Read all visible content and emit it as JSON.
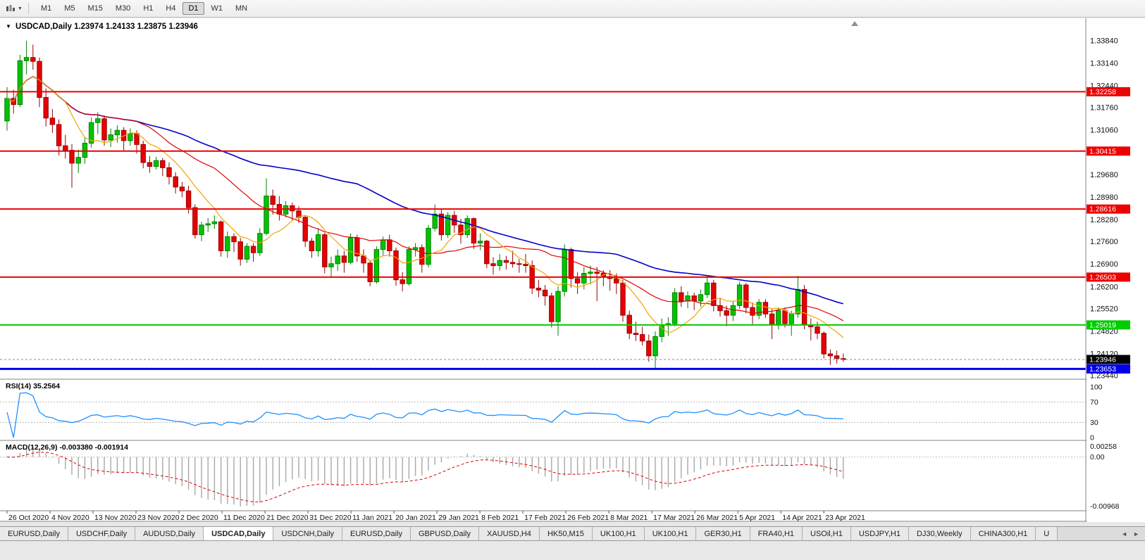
{
  "toolbar": {
    "timeframes": [
      "M1",
      "M5",
      "M15",
      "M30",
      "H1",
      "H4",
      "D1",
      "W1",
      "MN"
    ],
    "active": "D1"
  },
  "icons": {
    "dropdown_caret": "▼",
    "title_caret": "▼",
    "tab_scroll_left": "◄",
    "tab_scroll_right": "►",
    "chart_shift_marker": "▲"
  },
  "chart": {
    "symbol_title": "USDCAD,Daily",
    "ohlc_text": "1.23974 1.24133 1.23875 1.23946",
    "current_price": "1.23946",
    "colors": {
      "bull_fill": "#00C400",
      "bull_stroke": "#008000",
      "bear_fill": "#E80000",
      "bear_stroke": "#990000",
      "ma_fast": "#F0A500",
      "ma_mid": "#E00000",
      "ma_slow": "#0000C8",
      "rsi_line": "#1E90FF",
      "macd_hist": "#A8A8A8",
      "macd_signal": "#E00000",
      "axis_text": "#111111",
      "panel_border": "#808080",
      "current_price_bg": "#000000"
    },
    "h_lines": [
      {
        "price": 1.32258,
        "label": "1.32258",
        "color": "#EE0000",
        "width": 2
      },
      {
        "price": 1.30415,
        "label": "1.30415",
        "color": "#EE0000",
        "width": 2
      },
      {
        "price": 1.28616,
        "label": "1.28616",
        "color": "#EE0000",
        "width": 2
      },
      {
        "price": 1.26503,
        "label": "1.26503",
        "color": "#EE0000",
        "width": 2
      },
      {
        "price": 1.25019,
        "label": "1.25019",
        "color": "#00CC00",
        "width": 2
      },
      {
        "price": 1.23653,
        "label": "1.23653",
        "color": "#0000EE",
        "width": 3
      }
    ],
    "price_axis_ticks": [
      "1.33840",
      "1.33140",
      "1.32440",
      "1.31760",
      "1.31060",
      "1.29680",
      "1.28980",
      "1.28280",
      "1.27600",
      "1.26900",
      "1.26200",
      "1.25520",
      "1.24820",
      "1.24120",
      "1.23440"
    ],
    "moving_averages": [
      {
        "period": 55,
        "color_key": "ma_slow"
      },
      {
        "period": 21,
        "color_key": "ma_mid"
      },
      {
        "period": 8,
        "color_key": "ma_fast"
      }
    ]
  },
  "rsi_panel": {
    "label": "RSI(14) 35.2564",
    "period": 14,
    "value": "35.2564",
    "levels": [
      70,
      30
    ],
    "axis_labels": [
      "100",
      "70",
      "30",
      "0"
    ]
  },
  "macd_panel": {
    "label": "MACD(12,26,9) -0.003380 -0.001914",
    "fast": 12,
    "slow": 26,
    "signal": 9,
    "values": [
      "-0.003380",
      "-0.001914"
    ],
    "axis_labels": [
      "0.00258",
      "0.00",
      "-0.00968"
    ]
  },
  "tab_bar": {
    "tabs": [
      "EURUSD,Daily",
      "USDCHF,Daily",
      "AUDUSD,Daily",
      "USDCAD,Daily",
      "USDCNH,Daily",
      "EURUSD,Daily",
      "GBPUSD,Daily",
      "XAUUSD,H4",
      "HK50,M15",
      "UK100,H1",
      "UK100,H1",
      "GER30,H1",
      "FRA40,H1",
      "USOil,H1",
      "USDJPY,H1",
      "DJ30,Weekly",
      "CHINA300,H1",
      "U"
    ],
    "active_index": 3
  },
  "chart_data": {
    "type": "candlestick",
    "title": "USDCAD,Daily",
    "symbol": "USDCAD",
    "timeframe": "Daily",
    "last_ohlc": {
      "open": 1.23974,
      "high": 1.24133,
      "low": 1.23875,
      "close": 1.23946
    },
    "ylim": [
      1.234,
      1.3445
    ],
    "x_labels": [
      "26 Oct 2020",
      "4 Nov 2020",
      "13 Nov 2020",
      "23 Nov 2020",
      "2 Dec 2020",
      "11 Dec 2020",
      "21 Dec 2020",
      "31 Dec 2020",
      "11 Jan 2021",
      "20 Jan 2021",
      "29 Jan 2021",
      "8 Feb 2021",
      "17 Feb 2021",
      "26 Feb 2021",
      "8 Mar 2021",
      "17 Mar 2021",
      "26 Mar 2021",
      "5 Apr 2021",
      "14 Apr 2021",
      "23 Apr 2021"
    ],
    "ohlc": [
      [
        1.3135,
        1.324,
        1.3105,
        1.3205
      ],
      [
        1.3205,
        1.3232,
        1.3158,
        1.3186
      ],
      [
        1.3186,
        1.334,
        1.3178,
        1.3322
      ],
      [
        1.3322,
        1.3384,
        1.328,
        1.3332
      ],
      [
        1.3332,
        1.3372,
        1.3294,
        1.332
      ],
      [
        1.332,
        1.3332,
        1.3178,
        1.3208
      ],
      [
        1.3208,
        1.3236,
        1.3118,
        1.3144
      ],
      [
        1.3144,
        1.3172,
        1.3098,
        1.3124
      ],
      [
        1.3124,
        1.314,
        1.3028,
        1.3058
      ],
      [
        1.3058,
        1.3092,
        1.3018,
        1.3044
      ],
      [
        1.3044,
        1.3064,
        1.2928,
        1.3004
      ],
      [
        1.3004,
        1.3046,
        1.2974,
        1.3022
      ],
      [
        1.3022,
        1.3086,
        1.3002,
        1.3066
      ],
      [
        1.3066,
        1.3146,
        1.3052,
        1.313
      ],
      [
        1.313,
        1.3162,
        1.3094,
        1.3142
      ],
      [
        1.3142,
        1.3152,
        1.3058,
        1.3076
      ],
      [
        1.3076,
        1.3112,
        1.3054,
        1.3092
      ],
      [
        1.3092,
        1.3122,
        1.3068,
        1.3106
      ],
      [
        1.3106,
        1.3116,
        1.3044,
        1.3074
      ],
      [
        1.3074,
        1.3112,
        1.3058,
        1.3096
      ],
      [
        1.3096,
        1.3106,
        1.3034,
        1.3062
      ],
      [
        1.3062,
        1.3074,
        1.2988,
        1.3006
      ],
      [
        1.3006,
        1.3026,
        1.2974,
        1.2994
      ],
      [
        1.2994,
        1.3024,
        1.2984,
        1.3012
      ],
      [
        1.3012,
        1.302,
        1.2964,
        1.299
      ],
      [
        1.299,
        1.3006,
        1.2938,
        1.2962
      ],
      [
        1.2962,
        1.2976,
        1.291,
        1.293
      ],
      [
        1.293,
        1.2946,
        1.2898,
        1.2918
      ],
      [
        1.2918,
        1.2934,
        1.2848,
        1.2866
      ],
      [
        1.2866,
        1.2876,
        1.277,
        1.2782
      ],
      [
        1.2782,
        1.2822,
        1.2762,
        1.2812
      ],
      [
        1.2812,
        1.2834,
        1.279,
        1.2816
      ],
      [
        1.2816,
        1.2842,
        1.28,
        1.2822
      ],
      [
        1.2822,
        1.2826,
        1.2714,
        1.2732
      ],
      [
        1.2732,
        1.2792,
        1.271,
        1.2776
      ],
      [
        1.2776,
        1.2786,
        1.2728,
        1.276
      ],
      [
        1.276,
        1.2772,
        1.2686,
        1.2706
      ],
      [
        1.2706,
        1.2756,
        1.2694,
        1.2746
      ],
      [
        1.2746,
        1.2756,
        1.2698,
        1.2726
      ],
      [
        1.2726,
        1.2802,
        1.2716,
        1.2786
      ],
      [
        1.2786,
        1.2957,
        1.278,
        1.2902
      ],
      [
        1.2902,
        1.2922,
        1.2844,
        1.2876
      ],
      [
        1.2876,
        1.2902,
        1.2826,
        1.2846
      ],
      [
        1.2846,
        1.2886,
        1.2836,
        1.2872
      ],
      [
        1.2872,
        1.2882,
        1.2828,
        1.2856
      ],
      [
        1.2856,
        1.287,
        1.2818,
        1.2836
      ],
      [
        1.2836,
        1.2842,
        1.2744,
        1.2762
      ],
      [
        1.2762,
        1.2772,
        1.271,
        1.2732
      ],
      [
        1.2732,
        1.2802,
        1.2714,
        1.2782
      ],
      [
        1.2782,
        1.2788,
        1.2662,
        1.2682
      ],
      [
        1.2682,
        1.2714,
        1.2648,
        1.2692
      ],
      [
        1.2692,
        1.2736,
        1.267,
        1.2716
      ],
      [
        1.2716,
        1.2732,
        1.2664,
        1.2696
      ],
      [
        1.2696,
        1.2786,
        1.269,
        1.2772
      ],
      [
        1.2772,
        1.2782,
        1.2698,
        1.2716
      ],
      [
        1.2716,
        1.2736,
        1.2664,
        1.2694
      ],
      [
        1.2694,
        1.2702,
        1.2622,
        1.2636
      ],
      [
        1.2636,
        1.2746,
        1.263,
        1.2736
      ],
      [
        1.2736,
        1.2776,
        1.2718,
        1.2766
      ],
      [
        1.2766,
        1.2782,
        1.2714,
        1.2732
      ],
      [
        1.2732,
        1.2742,
        1.2624,
        1.2642
      ],
      [
        1.2642,
        1.2666,
        1.2606,
        1.263
      ],
      [
        1.263,
        1.2746,
        1.2624,
        1.2736
      ],
      [
        1.2736,
        1.2756,
        1.2714,
        1.2742
      ],
      [
        1.2742,
        1.2752,
        1.2664,
        1.269
      ],
      [
        1.269,
        1.2812,
        1.268,
        1.2802
      ],
      [
        1.2802,
        1.2876,
        1.2792,
        1.2846
      ],
      [
        1.2846,
        1.2862,
        1.2764,
        1.2782
      ],
      [
        1.2782,
        1.2852,
        1.2772,
        1.2842
      ],
      [
        1.2842,
        1.2856,
        1.2788,
        1.2812
      ],
      [
        1.2812,
        1.2832,
        1.2754,
        1.2782
      ],
      [
        1.2782,
        1.2842,
        1.2772,
        1.2832
      ],
      [
        1.2832,
        1.2836,
        1.2738,
        1.2756
      ],
      [
        1.2756,
        1.2786,
        1.2734,
        1.2762
      ],
      [
        1.2762,
        1.2766,
        1.2678,
        1.2692
      ],
      [
        1.2692,
        1.2712,
        1.2658,
        1.2686
      ],
      [
        1.2686,
        1.2722,
        1.267,
        1.2702
      ],
      [
        1.2702,
        1.2716,
        1.2674,
        1.2696
      ],
      [
        1.2696,
        1.2732,
        1.268,
        1.2692
      ],
      [
        1.2692,
        1.2706,
        1.2664,
        1.269
      ],
      [
        1.269,
        1.2722,
        1.2664,
        1.2686
      ],
      [
        1.2686,
        1.2702,
        1.2598,
        1.2616
      ],
      [
        1.2616,
        1.2642,
        1.2588,
        1.261
      ],
      [
        1.261,
        1.2626,
        1.2562,
        1.2592
      ],
      [
        1.2592,
        1.2602,
        1.2494,
        1.2512
      ],
      [
        1.2512,
        1.2622,
        1.2468,
        1.2606
      ],
      [
        1.2606,
        1.2752,
        1.259,
        1.2736
      ],
      [
        1.2736,
        1.2742,
        1.2618,
        1.2646
      ],
      [
        1.2646,
        1.2666,
        1.2598,
        1.2632
      ],
      [
        1.2632,
        1.2682,
        1.2612,
        1.2662
      ],
      [
        1.2662,
        1.2686,
        1.2628,
        1.2666
      ],
      [
        1.2666,
        1.2682,
        1.2576,
        1.2662
      ],
      [
        1.2662,
        1.2672,
        1.2622,
        1.2652
      ],
      [
        1.2652,
        1.2672,
        1.2608,
        1.2646
      ],
      [
        1.2646,
        1.2662,
        1.2598,
        1.2632
      ],
      [
        1.2632,
        1.2642,
        1.2512,
        1.2532
      ],
      [
        1.2532,
        1.2546,
        1.2458,
        1.2476
      ],
      [
        1.2476,
        1.2512,
        1.2452,
        1.2472
      ],
      [
        1.2472,
        1.2496,
        1.2438,
        1.2452
      ],
      [
        1.2452,
        1.2472,
        1.2388,
        1.2406
      ],
      [
        1.2406,
        1.2482,
        1.2365,
        1.2466
      ],
      [
        1.2466,
        1.2522,
        1.2448,
        1.2502
      ],
      [
        1.2502,
        1.2526,
        1.2468,
        1.2506
      ],
      [
        1.2506,
        1.2616,
        1.2498,
        1.2602
      ],
      [
        1.2602,
        1.2622,
        1.2558,
        1.2576
      ],
      [
        1.2576,
        1.2606,
        1.2554,
        1.2592
      ],
      [
        1.2592,
        1.2602,
        1.2548,
        1.2576
      ],
      [
        1.2576,
        1.2612,
        1.2558,
        1.2596
      ],
      [
        1.2596,
        1.2652,
        1.2586,
        1.2632
      ],
      [
        1.2632,
        1.2642,
        1.2544,
        1.2562
      ],
      [
        1.2562,
        1.2586,
        1.2528,
        1.2546
      ],
      [
        1.2546,
        1.2562,
        1.2498,
        1.2532
      ],
      [
        1.2532,
        1.2576,
        1.2514,
        1.2562
      ],
      [
        1.2562,
        1.2636,
        1.2552,
        1.2626
      ],
      [
        1.2626,
        1.2632,
        1.2538,
        1.2556
      ],
      [
        1.2556,
        1.2572,
        1.2504,
        1.2532
      ],
      [
        1.2532,
        1.2582,
        1.252,
        1.2572
      ],
      [
        1.2572,
        1.2582,
        1.2524,
        1.2536
      ],
      [
        1.2536,
        1.2552,
        1.2458,
        1.2502
      ],
      [
        1.2502,
        1.2556,
        1.2488,
        1.2546
      ],
      [
        1.2546,
        1.2556,
        1.2494,
        1.2506
      ],
      [
        1.2506,
        1.2546,
        1.2468,
        1.2536
      ],
      [
        1.2536,
        1.2654,
        1.2524,
        1.2612
      ],
      [
        1.2612,
        1.2626,
        1.2488,
        1.2502
      ],
      [
        1.2502,
        1.2522,
        1.2454,
        1.2496
      ],
      [
        1.2496,
        1.2512,
        1.2458,
        1.2476
      ],
      [
        1.2476,
        1.2482,
        1.2398,
        1.2412
      ],
      [
        1.2412,
        1.2426,
        1.2378,
        1.2406
      ],
      [
        1.2406,
        1.2422,
        1.2382,
        1.2398
      ],
      [
        1.23974,
        1.24133,
        1.23875,
        1.23946
      ]
    ]
  }
}
